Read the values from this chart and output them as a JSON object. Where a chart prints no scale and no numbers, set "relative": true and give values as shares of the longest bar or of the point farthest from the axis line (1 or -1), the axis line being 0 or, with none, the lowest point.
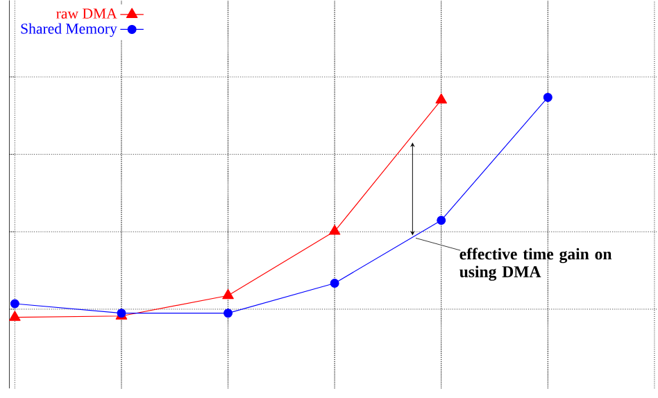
{
  "chart_data": {
    "type": "line",
    "relative": true,
    "categories": [
      null,
      null,
      null,
      null,
      null,
      null
    ],
    "series": [
      {
        "name": "raw DMA",
        "color": "#ff0000",
        "marker": "triangle",
        "values": [
          0,
          0.006,
          0.099,
          0.391,
          0.988,
          null
        ]
      },
      {
        "name": "Shared Memory",
        "color": "#0000ff",
        "marker": "circle",
        "values": [
          0.062,
          0.019,
          0.019,
          0.155,
          0.441,
          1
        ]
      }
    ],
    "grid": true,
    "legend": "top left",
    "line_style": "solid",
    "tick_labels": false,
    "annotations": [
      "effective time gain on using DMA"
    ]
  }
}
